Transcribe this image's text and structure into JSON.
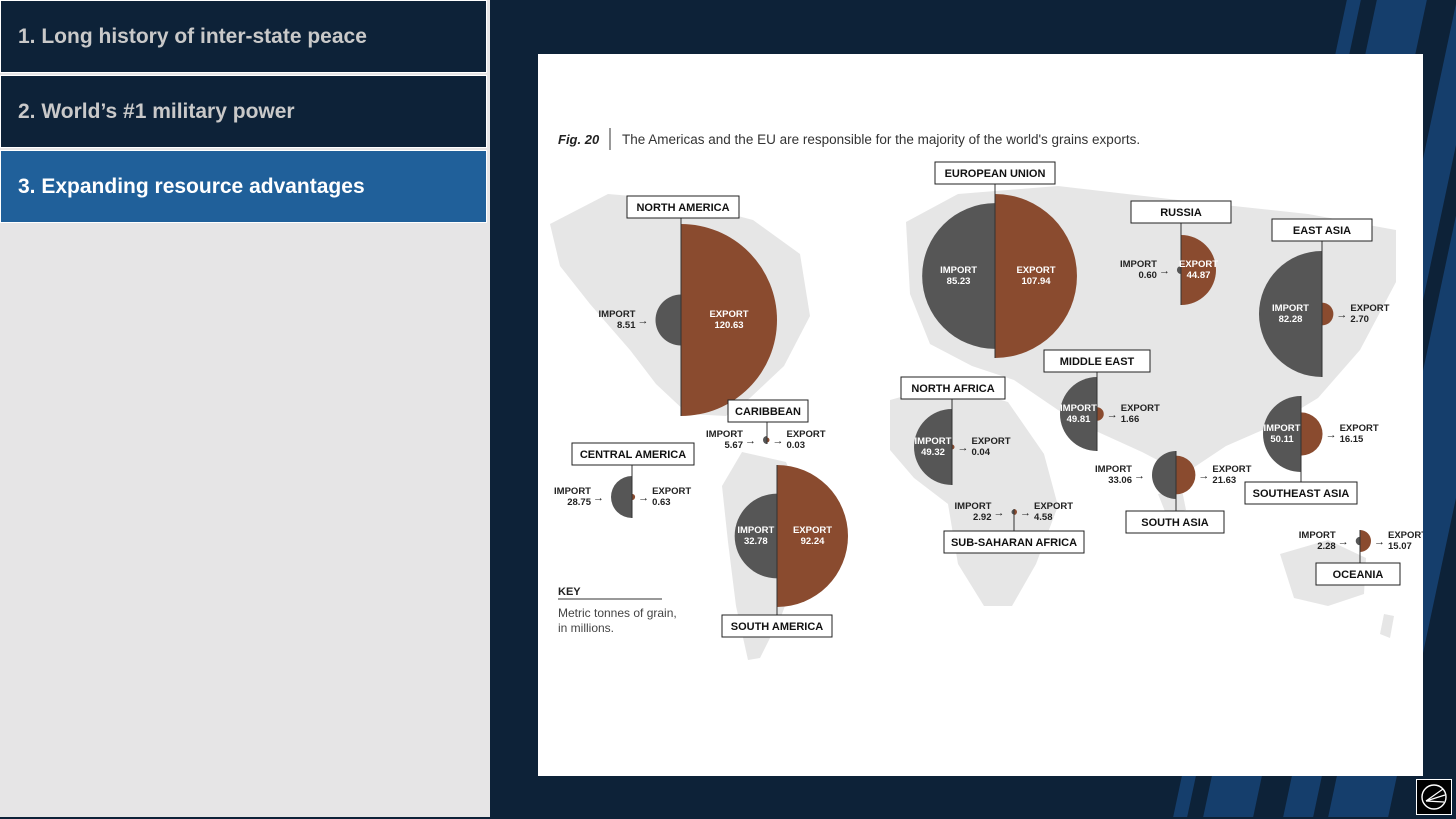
{
  "sidebar": {
    "items": [
      {
        "label": "1. Long history of inter-state peace",
        "active": false
      },
      {
        "label": "2. World’s #1 military power",
        "active": false
      },
      {
        "label": "3. Expanding resource advantages",
        "active": true
      }
    ]
  },
  "logo": {
    "icon": "compass-logo-icon"
  },
  "chart_data": {
    "type": "semicircle-map",
    "figure_label": "Fig. 20",
    "caption": "The Americas and the EU are responsible for the majority of the world's grains exports.",
    "import_label": "IMPORT",
    "export_label": "EXPORT",
    "key": {
      "title": "KEY",
      "text_line1": "Metric tonnes of grain,",
      "text_line2": "in millions."
    },
    "colors": {
      "import": "#565656",
      "export": "#8a4b2f",
      "map": "#e6e6e6"
    },
    "regions": [
      {
        "name": "NORTH AMERICA",
        "import": "8.51",
        "export": "120.63"
      },
      {
        "name": "CARIBBEAN",
        "import": "5.67",
        "export": "0.03"
      },
      {
        "name": "CENTRAL AMERICA",
        "import": "28.75",
        "export": "0.63"
      },
      {
        "name": "SOUTH AMERICA",
        "import": "32.78",
        "export": "92.24"
      },
      {
        "name": "EUROPEAN UNION",
        "import": "85.23",
        "export": "107.94"
      },
      {
        "name": "RUSSIA",
        "import": "0.60",
        "export": "44.87"
      },
      {
        "name": "EAST ASIA",
        "import": "82.28",
        "export": "2.70"
      },
      {
        "name": "MIDDLE EAST",
        "import": "49.81",
        "export": "1.66"
      },
      {
        "name": "NORTH AFRICA",
        "import": "49.32",
        "export": "0.04"
      },
      {
        "name": "SUB-SAHARAN AFRICA",
        "import": "2.92",
        "export": "4.58"
      },
      {
        "name": "SOUTH ASIA",
        "import": "33.06",
        "export": "21.63"
      },
      {
        "name": "SOUTHEAST ASIA",
        "import": "50.11",
        "export": "16.15"
      },
      {
        "name": "OCEANIA",
        "import": "2.28",
        "export": "15.07"
      }
    ]
  }
}
